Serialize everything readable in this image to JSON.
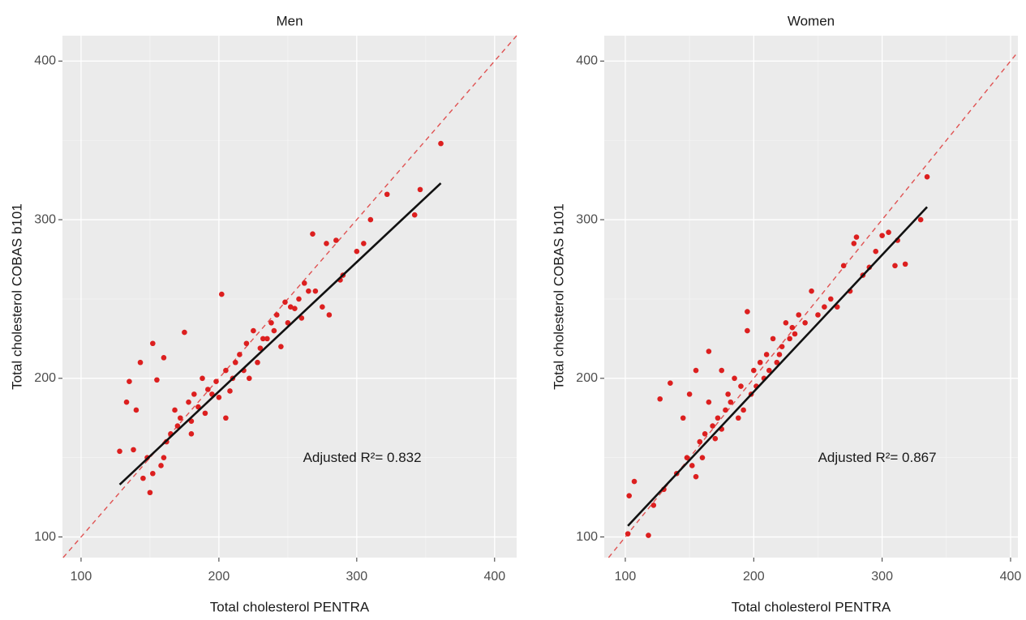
{
  "chart_data": [
    {
      "type": "scatter",
      "title": "Men",
      "x_label": "Total cholesterol PENTRA",
      "y_label": "Total cholesterol COBAS b101",
      "annotation": "Adjusted R²= 0.832",
      "xlim": [
        86.5,
        416
      ],
      "ylim": [
        87,
        416
      ],
      "xticks": [
        100,
        200,
        300,
        400
      ],
      "yticks": [
        100,
        200,
        300,
        400
      ],
      "xminor": [
        150,
        250,
        350
      ],
      "yminor": [
        150,
        250,
        350
      ],
      "grid": true,
      "identity_line": true,
      "series": [
        {
          "color": "#dc1f1f",
          "x": [
            128,
            133,
            135,
            140,
            143,
            145,
            148,
            150,
            152,
            155,
            158,
            160,
            162,
            165,
            168,
            170,
            172,
            175,
            178,
            180,
            182,
            185,
            188,
            190,
            192,
            195,
            198,
            200,
            202,
            205,
            208,
            210,
            212,
            215,
            218,
            220,
            222,
            225,
            228,
            230,
            232,
            235,
            238,
            240,
            242,
            245,
            248,
            250,
            252,
            255,
            258,
            260,
            262,
            265,
            268,
            270,
            275,
            278,
            280,
            285,
            288,
            290,
            300,
            305,
            310,
            322,
            342,
            346,
            361,
            180,
            205,
            152,
            138,
            160
          ],
          "values": [
            154,
            185,
            198,
            180,
            210,
            137,
            150,
            128,
            222,
            199,
            145,
            213,
            160,
            165,
            180,
            170,
            175,
            229,
            185,
            173,
            190,
            182,
            200,
            178,
            193,
            190,
            198,
            188,
            253,
            205,
            192,
            200,
            210,
            215,
            205,
            222,
            200,
            230,
            210,
            219,
            225,
            225,
            235,
            230,
            240,
            220,
            248,
            235,
            245,
            244,
            250,
            238,
            260,
            255,
            291,
            255,
            245,
            285,
            240,
            287,
            262,
            265,
            280,
            285,
            300,
            316,
            303,
            319,
            348,
            165,
            175,
            140,
            155,
            150
          ]
        }
      ],
      "fit": {
        "color": "#111111",
        "x": [
          128,
          361
        ],
        "values": [
          133,
          323
        ]
      }
    },
    {
      "type": "scatter",
      "title": "Women",
      "x_label": "Total cholesterol PENTRA",
      "y_label": "Total cholesterol COBAS b101",
      "annotation": "Adjusted R²= 0.867",
      "xlim": [
        83.6,
        405.7
      ],
      "ylim": [
        87,
        416
      ],
      "xticks": [
        100,
        200,
        300,
        400
      ],
      "yticks": [
        100,
        200,
        300,
        400
      ],
      "xminor": [
        150,
        250,
        350
      ],
      "yminor": [
        150,
        250,
        350
      ],
      "grid": true,
      "identity_line": true,
      "series": [
        {
          "color": "#dc1f1f",
          "x": [
            102,
            103,
            107,
            118,
            122,
            127,
            130,
            135,
            140,
            145,
            148,
            150,
            152,
            155,
            158,
            160,
            162,
            165,
            168,
            170,
            172,
            175,
            178,
            180,
            182,
            185,
            188,
            190,
            192,
            195,
            198,
            200,
            202,
            205,
            208,
            210,
            212,
            215,
            218,
            220,
            222,
            225,
            228,
            230,
            232,
            235,
            240,
            245,
            250,
            255,
            260,
            265,
            270,
            275,
            278,
            280,
            285,
            290,
            295,
            300,
            305,
            310,
            312,
            318,
            330,
            335,
            165,
            175,
            155,
            195
          ],
          "values": [
            102,
            126,
            135,
            101,
            120,
            187,
            130,
            197,
            140,
            175,
            150,
            190,
            145,
            138,
            160,
            150,
            165,
            217,
            170,
            162,
            175,
            205,
            180,
            190,
            185,
            200,
            175,
            195,
            180,
            242,
            190,
            205,
            195,
            210,
            200,
            215,
            205,
            225,
            210,
            215,
            220,
            235,
            225,
            232,
            228,
            240,
            235,
            255,
            240,
            245,
            250,
            245,
            271,
            255,
            285,
            289,
            265,
            270,
            280,
            290,
            292,
            271,
            287,
            272,
            300,
            327,
            185,
            168,
            205,
            230
          ]
        }
      ],
      "fit": {
        "color": "#111111",
        "x": [
          102,
          335
        ],
        "values": [
          107,
          308
        ]
      }
    }
  ]
}
